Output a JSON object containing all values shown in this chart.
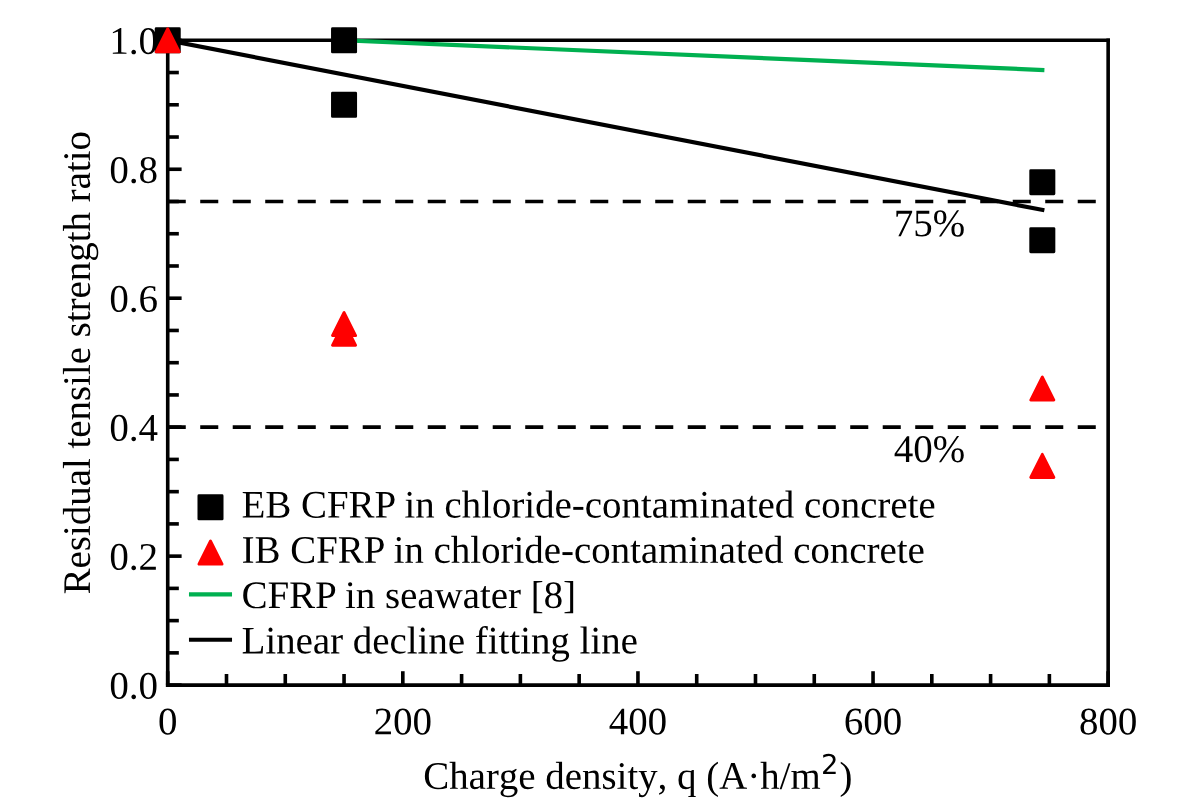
{
  "chart_data": {
    "type": "scatter",
    "xlabel": "Charge density, q (A·h/m$^{2}$)",
    "ylabel": "Residual tensile strength ratio",
    "xlim": [
      0,
      800
    ],
    "xticks": [
      0,
      200,
      400,
      600,
      800
    ],
    "ylim": [
      0,
      1.0
    ],
    "yticks": [
      {
        "value": 0,
        "label": "0.0"
      },
      {
        "value": 0.2,
        "label": "0.2"
      },
      {
        "value": 0.4,
        "label": "0.4"
      },
      {
        "value": 0.6,
        "label": "0.6"
      },
      {
        "value": 0.8,
        "label": "0.8"
      },
      {
        "value": 1.0,
        "label": "1.0"
      }
    ],
    "series": [
      {
        "name": "EB CFRP in chloride-contaminated concrete",
        "marker": "square",
        "color": "#000000",
        "x": [
          0,
          150,
          150,
          744,
          744
        ],
        "values": [
          1.0,
          1.0,
          0.9,
          0.78,
          0.69
        ]
      },
      {
        "name": "IB CFRP in chloride-contaminated concrete",
        "marker": "triangle",
        "color": "#ff0000",
        "x": [
          0,
          150,
          150,
          744,
          744
        ],
        "values": [
          1.0,
          0.56,
          0.545,
          0.46,
          0.34
        ]
      },
      {
        "name": "CFRP in seawater [8]",
        "type": "line",
        "marker": "none",
        "color": "#00b050",
        "x": [
          150,
          744
        ],
        "values": [
          1.0,
          0.954
        ]
      },
      {
        "name": "Linear decline fitting line",
        "type": "line",
        "marker": "none",
        "color": "#000000",
        "x": [
          0,
          744
        ],
        "values": [
          1.0,
          0.737
        ]
      }
    ],
    "ref_lines": [
      {
        "axis": "y",
        "value": 0.75,
        "label": "75%",
        "color": "#000000",
        "line_style": "dashed"
      },
      {
        "axis": "y",
        "value": 0.4,
        "label": "40%",
        "color": "#000000",
        "line_style": "dashed"
      }
    ],
    "legend": "bottom left",
    "grid": false
  }
}
